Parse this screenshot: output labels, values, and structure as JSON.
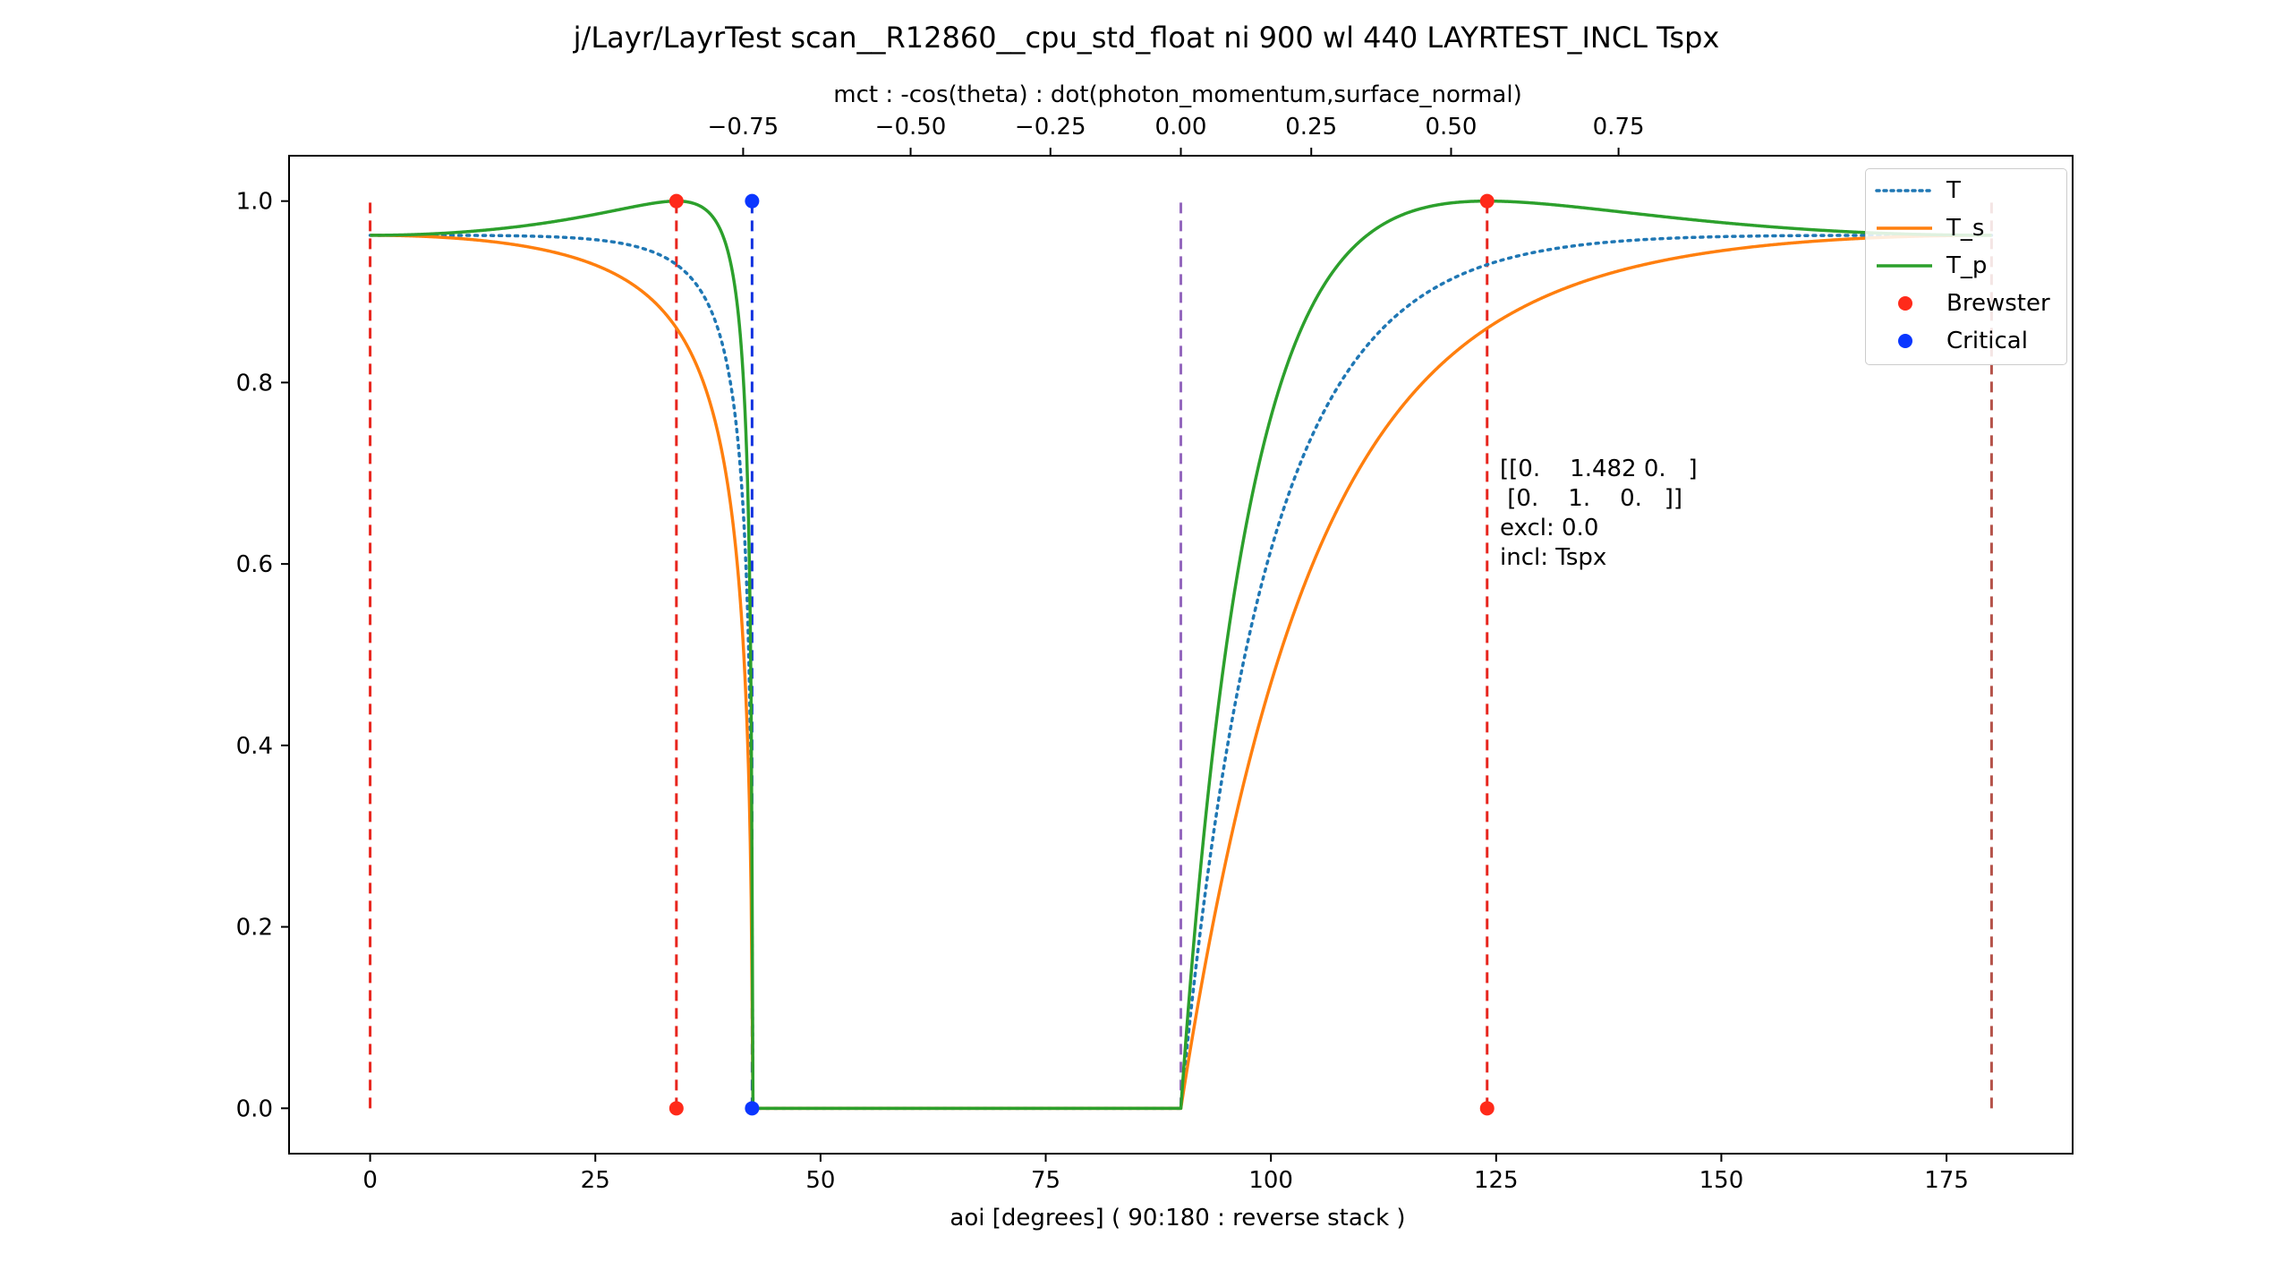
{
  "chart_data": {
    "type": "line",
    "title": "j/Layr/LayrTest scan__R12860__cpu_std_float ni 900 wl 440 LAYRTEST_INCL Tspx",
    "xlabel": "aoi [degrees] ( 90:180 : reverse stack )",
    "ylabel": "",
    "xlim": [
      -9,
      189
    ],
    "ylim": [
      -0.05,
      1.05
    ],
    "x_ticks": [
      0,
      25,
      50,
      75,
      100,
      125,
      150,
      175
    ],
    "x_tick_labels": [
      "0",
      "25",
      "50",
      "75",
      "100",
      "125",
      "150",
      "175"
    ],
    "y_ticks": [
      0.0,
      0.2,
      0.4,
      0.6,
      0.8,
      1.0
    ],
    "y_tick_labels": [
      "0.0",
      "0.2",
      "0.4",
      "0.6",
      "0.8",
      "1.0"
    ],
    "top_axis": {
      "label": "mct : -cos(theta) : dot(photon_momentum,surface_normal)",
      "ticks": [
        -0.75,
        -0.5,
        -0.25,
        0.0,
        0.25,
        0.5,
        0.75
      ],
      "tick_labels": [
        "−0.75",
        "−0.50",
        "−0.25",
        "0.00",
        "0.25",
        "0.50",
        "0.75"
      ]
    },
    "grid": false,
    "legend_position": "top-right",
    "n1": 1.482,
    "n2": 1.0,
    "series": [
      {
        "name": "T",
        "style": "dotted",
        "color": "#1f77b4",
        "kind": "avg"
      },
      {
        "name": "T_s",
        "style": "solid",
        "color": "#ff7f0e",
        "kind": "s"
      },
      {
        "name": "T_p",
        "style": "solid",
        "color": "#2ca02c",
        "kind": "p"
      }
    ],
    "markers": [
      {
        "name": "Brewster",
        "color": "#ff2a1a",
        "points": [
          [
            34.0,
            0.0
          ],
          [
            34.0,
            1.0
          ],
          [
            124.0,
            0.0
          ],
          [
            124.0,
            1.0
          ]
        ]
      },
      {
        "name": "Critical",
        "color": "#0a36ff",
        "points": [
          [
            42.4,
            0.0
          ],
          [
            42.4,
            1.0
          ]
        ]
      }
    ],
    "vlines": [
      {
        "x": 0,
        "color": "#e8261e"
      },
      {
        "x": 34.0,
        "color": "#e8261e"
      },
      {
        "x": 42.4,
        "color": "#1233e0"
      },
      {
        "x": 90,
        "color": "#9467bd"
      },
      {
        "x": 124.0,
        "color": "#e8261e"
      },
      {
        "x": 180,
        "color": "#b5534a"
      }
    ],
    "annotation": [
      "[[0.    1.482 0.   ]",
      " [0.    1.    0.   ]]",
      "excl: 0.0",
      "incl: Tspx"
    ]
  }
}
